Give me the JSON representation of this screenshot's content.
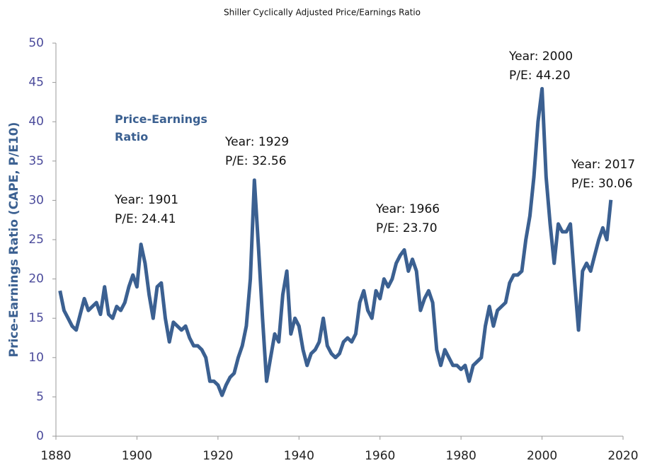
{
  "chart_data": {
    "type": "line",
    "title": "Shiller Cyclically Adjusted Price/Earnings Ratio",
    "ylabel": "Price-Earnings  Ratio (CAPE, P/E10)",
    "x": [
      1881,
      1882,
      1883,
      1884,
      1885,
      1886,
      1887,
      1888,
      1889,
      1890,
      1891,
      1892,
      1893,
      1894,
      1895,
      1896,
      1897,
      1898,
      1899,
      1900,
      1901,
      1902,
      1903,
      1904,
      1905,
      1906,
      1907,
      1908,
      1909,
      1910,
      1911,
      1912,
      1913,
      1914,
      1915,
      1916,
      1917,
      1918,
      1919,
      1920,
      1921,
      1922,
      1923,
      1924,
      1925,
      1926,
      1927,
      1928,
      1929,
      1930,
      1931,
      1932,
      1933,
      1934,
      1935,
      1936,
      1937,
      1938,
      1939,
      1940,
      1941,
      1942,
      1943,
      1944,
      1945,
      1946,
      1947,
      1948,
      1949,
      1950,
      1951,
      1952,
      1953,
      1954,
      1955,
      1956,
      1957,
      1958,
      1959,
      1960,
      1961,
      1962,
      1963,
      1964,
      1965,
      1966,
      1967,
      1968,
      1969,
      1970,
      1971,
      1972,
      1973,
      1974,
      1975,
      1976,
      1977,
      1978,
      1979,
      1980,
      1981,
      1982,
      1983,
      1984,
      1985,
      1986,
      1987,
      1988,
      1989,
      1990,
      1991,
      1992,
      1993,
      1994,
      1995,
      1996,
      1997,
      1998,
      1999,
      2000,
      2001,
      2002,
      2003,
      2004,
      2005,
      2006,
      2007,
      2008,
      2009,
      2010,
      2011,
      2012,
      2013,
      2014,
      2015,
      2016,
      2017
    ],
    "series": [
      {
        "name": "Price-Earnings Ratio",
        "color": "#3b6091",
        "values": [
          18.5,
          16,
          15,
          14,
          13.5,
          15.5,
          17.5,
          16,
          16.5,
          17,
          15.5,
          19,
          15.5,
          15,
          16.5,
          16,
          17,
          19,
          20.5,
          19,
          24.41,
          22,
          18,
          15,
          19,
          19.5,
          15,
          12,
          14.5,
          14,
          13.5,
          14,
          12.5,
          11.5,
          11.5,
          11,
          10,
          7,
          7,
          6.5,
          5.2,
          6.5,
          7.5,
          8,
          10,
          11.5,
          14,
          20,
          32.56,
          24,
          15,
          7,
          10,
          13,
          12,
          18,
          21,
          13,
          15,
          14,
          11,
          9,
          10.5,
          11,
          12,
          15,
          11.5,
          10.5,
          10,
          10.5,
          12,
          12.5,
          12,
          13,
          17,
          18.5,
          16,
          15,
          18.5,
          17.5,
          20,
          19,
          20,
          22,
          23,
          23.7,
          21,
          22.5,
          21,
          16,
          17.5,
          18.5,
          17,
          11,
          9,
          11,
          10,
          9,
          9,
          8.5,
          9,
          7,
          9,
          9.5,
          10,
          14,
          16.5,
          14,
          16,
          16.5,
          17,
          19.5,
          20.5,
          20.5,
          21,
          25,
          28,
          33,
          40,
          44.2,
          33,
          27,
          22,
          27,
          26,
          26,
          27,
          20,
          13.5,
          21,
          22,
          21,
          23,
          25,
          26.5,
          25,
          30.06
        ]
      }
    ],
    "annotations": [
      [
        "Year: 1901",
        "P/E: 24.41"
      ],
      [
        "Year: 1929",
        "P/E: 32.56"
      ],
      [
        "Year: 1966",
        "P/E: 23.70"
      ],
      [
        "Year: 2000",
        "P/E: 44.20"
      ],
      [
        "Year: 2017",
        "P/E: 30.06"
      ]
    ],
    "xlim": [
      1880,
      2020
    ],
    "xticks": [
      1880,
      1900,
      1920,
      1940,
      1960,
      1980,
      2000,
      2020
    ],
    "ylim": [
      0,
      50
    ],
    "yticks": [
      0,
      5,
      10,
      15,
      20,
      25,
      30,
      35,
      40,
      45,
      50
    ],
    "grid": false
  }
}
